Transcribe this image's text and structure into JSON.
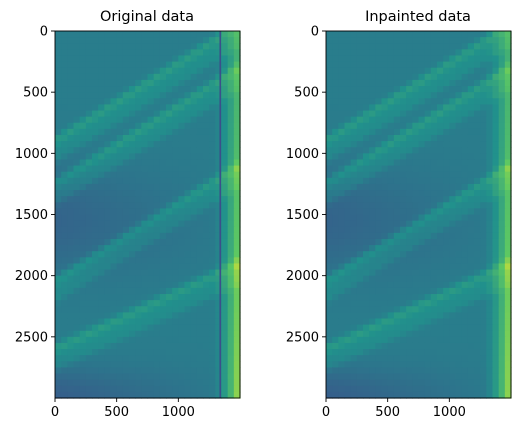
{
  "chart_data": [
    {
      "type": "heatmap",
      "title": "Original data",
      "xlim": [
        0,
        1500
      ],
      "ylim": [
        3000,
        0
      ],
      "xticks": [
        0,
        500,
        1000
      ],
      "yticks": [
        0,
        500,
        1000,
        1500,
        2000,
        2500
      ],
      "xtick_labels": [
        "0",
        "500",
        "1000"
      ],
      "ytick_labels": [
        "0",
        "500",
        "1000",
        "1500",
        "2000",
        "2500"
      ],
      "colormap": "viridis",
      "colormap_stops": [
        "#440154",
        "#3b528b",
        "#21918c",
        "#5ec962",
        "#fde725"
      ],
      "gap_column": 1340,
      "gap_color": "#3b4f8a",
      "stripes": [
        {
          "x0": 0,
          "y0": 900,
          "x1": 1500,
          "y1": -50
        },
        {
          "x0": 0,
          "y0": 1250,
          "x1": 1500,
          "y1": 300
        },
        {
          "x0": 0,
          "y0": 2050,
          "x1": 1500,
          "y1": 1100
        },
        {
          "x0": 0,
          "y0": 2600,
          "x1": 1500,
          "y1": 1900
        }
      ]
    },
    {
      "type": "heatmap",
      "title": "Inpainted data",
      "xlim": [
        0,
        1500
      ],
      "ylim": [
        3000,
        0
      ],
      "xticks": [
        0,
        500,
        1000
      ],
      "yticks": [
        0,
        500,
        1000,
        1500,
        2000,
        2500
      ],
      "xtick_labels": [
        "0",
        "500",
        "1000"
      ],
      "ytick_labels": [
        "0",
        "500",
        "1000",
        "1500",
        "2000",
        "2500"
      ],
      "colormap": "viridis",
      "colormap_stops": [
        "#440154",
        "#3b528b",
        "#21918c",
        "#5ec962",
        "#fde725"
      ],
      "stripes": [
        {
          "x0": 0,
          "y0": 900,
          "x1": 1500,
          "y1": -50
        },
        {
          "x0": 0,
          "y0": 1250,
          "x1": 1500,
          "y1": 300
        },
        {
          "x0": 0,
          "y0": 2050,
          "x1": 1500,
          "y1": 1100
        },
        {
          "x0": 0,
          "y0": 2600,
          "x1": 1500,
          "y1": 1900
        }
      ]
    }
  ]
}
